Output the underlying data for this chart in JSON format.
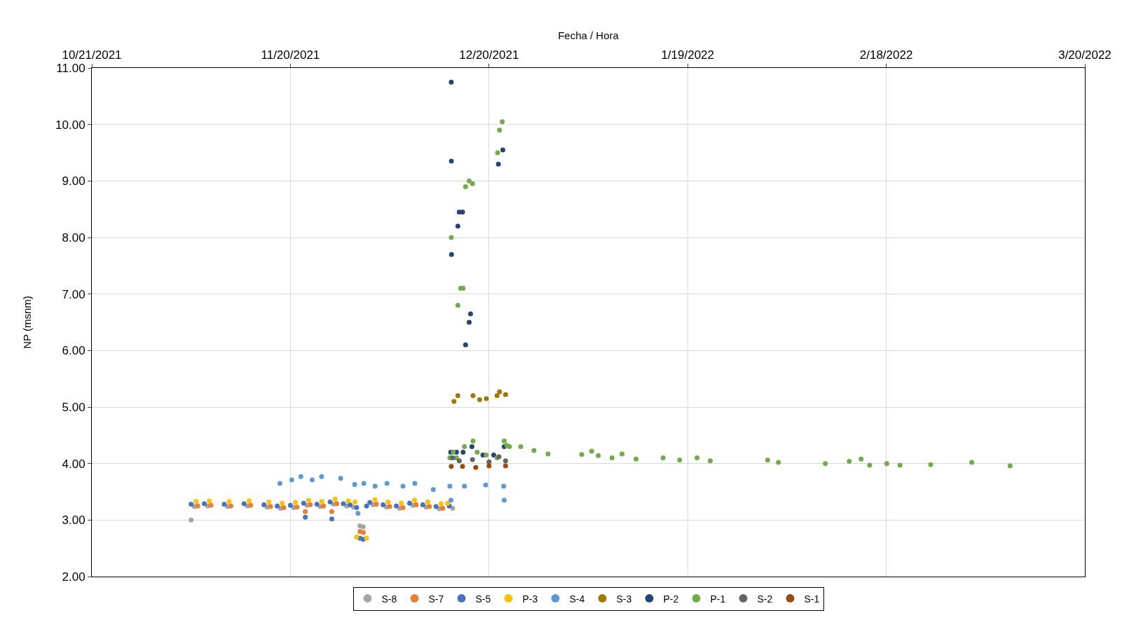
{
  "chart_data": {
    "type": "scatter",
    "xlabel": "Fecha / Hora",
    "ylabel": "NP (msnm)",
    "xlim": [
      "2021-10-21",
      "2022-03-20"
    ],
    "xticks": [
      {
        "value": "2021-10-21",
        "label": "10/21/2021"
      },
      {
        "value": "2021-11-20",
        "label": "11/20/2021"
      },
      {
        "value": "2021-12-20",
        "label": "12/20/2021"
      },
      {
        "value": "2022-01-19",
        "label": "1/19/2022"
      },
      {
        "value": "2022-02-18",
        "label": "2/18/2022"
      },
      {
        "value": "2022-03-20",
        "label": "3/20/2022"
      }
    ],
    "ylim": [
      2,
      11
    ],
    "yticks": [
      {
        "value": 2,
        "label": "2.00"
      },
      {
        "value": 3,
        "label": "3.00"
      },
      {
        "value": 4,
        "label": "4.00"
      },
      {
        "value": 5,
        "label": "5.00"
      },
      {
        "value": 6,
        "label": "6.00"
      },
      {
        "value": 7,
        "label": "7.00"
      },
      {
        "value": 8,
        "label": "8.00"
      },
      {
        "value": 9,
        "label": "9.00"
      },
      {
        "value": 10,
        "label": "10.00"
      },
      {
        "value": 11,
        "label": "11.00"
      }
    ],
    "grid": true,
    "legend": "bottom",
    "marker": "circle",
    "series": [
      {
        "name": "S-8",
        "color": "#a5a5a5",
        "x": [
          "2021-11-05",
          "2021-11-05T12:00",
          "2021-11-07T12:00",
          "2021-11-10T12:00",
          "2021-11-13T12:00",
          "2021-11-16T12:00",
          "2021-11-18T12:00",
          "2021-11-20T12:00",
          "2021-11-22T12:00",
          "2021-11-24T12:00",
          "2021-11-26T12:00",
          "2021-11-28T12:00",
          "2021-11-29T12:00",
          "2021-11-30T12:00",
          "2021-12-01",
          "2021-12-02T12:00",
          "2021-12-04T12:00",
          "2021-12-06T12:00",
          "2021-12-08T12:00",
          "2021-12-10T12:00",
          "2021-12-12T12:00",
          "2021-12-14T12:00"
        ],
        "values": [
          3.0,
          3.24,
          3.25,
          3.24,
          3.25,
          3.23,
          3.21,
          3.22,
          3.26,
          3.24,
          3.28,
          3.25,
          3.23,
          2.9,
          2.88,
          3.27,
          3.23,
          3.21,
          3.26,
          3.23,
          3.2,
          3.21
        ]
      },
      {
        "name": "S-7",
        "color": "#ed7d31",
        "x": [
          "2021-11-06",
          "2021-11-08",
          "2021-11-11",
          "2021-11-14",
          "2021-11-17",
          "2021-11-19",
          "2021-11-21",
          "2021-11-22T06:00",
          "2021-11-23",
          "2021-11-25",
          "2021-11-26T06:00",
          "2021-11-27",
          "2021-11-30T12:00",
          "2021-12-01",
          "2021-12-03",
          "2021-12-05",
          "2021-12-07",
          "2021-12-09",
          "2021-12-11",
          "2021-12-13"
        ],
        "values": [
          3.25,
          3.26,
          3.25,
          3.26,
          3.24,
          3.22,
          3.23,
          3.15,
          3.27,
          3.25,
          3.15,
          3.29,
          2.8,
          2.78,
          3.28,
          3.24,
          3.22,
          3.27,
          3.24,
          3.21
        ]
      },
      {
        "name": "S-5",
        "color": "#4472c4",
        "x": [
          "2021-11-05",
          "2021-11-07",
          "2021-11-10",
          "2021-11-13",
          "2021-11-16",
          "2021-11-18",
          "2021-11-20",
          "2021-11-22",
          "2021-11-22T06:00",
          "2021-11-24",
          "2021-11-26",
          "2021-11-26T06:00",
          "2021-11-28",
          "2021-11-29",
          "2021-11-30",
          "2021-11-30T12:00",
          "2021-12-01",
          "2021-12-01T12:00",
          "2021-12-02",
          "2021-12-04",
          "2021-12-06",
          "2021-12-08",
          "2021-12-10",
          "2021-12-12",
          "2021-12-14"
        ],
        "values": [
          3.28,
          3.29,
          3.28,
          3.29,
          3.27,
          3.25,
          3.26,
          3.3,
          3.05,
          3.28,
          3.32,
          3.02,
          3.29,
          3.27,
          3.22,
          2.68,
          2.66,
          3.25,
          3.31,
          3.27,
          3.25,
          3.3,
          3.27,
          3.24,
          3.25
        ]
      },
      {
        "name": "P-3",
        "color": "#ffc000",
        "x": [
          "2021-11-05T18:00",
          "2021-11-07T18:00",
          "2021-11-10T18:00",
          "2021-11-13T18:00",
          "2021-11-16T18:00",
          "2021-11-18T18:00",
          "2021-11-20T18:00",
          "2021-11-22T18:00",
          "2021-11-24T18:00",
          "2021-11-26T18:00",
          "2021-11-28T18:00",
          "2021-11-29T18:00",
          "2021-11-30",
          "2021-12-01T12:00",
          "2021-12-02T18:00",
          "2021-12-04T18:00",
          "2021-12-06T18:00",
          "2021-12-08T18:00",
          "2021-12-10T18:00",
          "2021-12-12T18:00",
          "2021-12-13T18:00"
        ],
        "values": [
          3.33,
          3.34,
          3.33,
          3.34,
          3.32,
          3.3,
          3.31,
          3.35,
          3.33,
          3.37,
          3.34,
          3.32,
          2.7,
          2.68,
          3.36,
          3.32,
          3.3,
          3.35,
          3.32,
          3.29,
          3.3
        ]
      },
      {
        "name": "S-4",
        "color": "#5b9bd5",
        "x": [
          "2021-11-18T10:00",
          "2021-11-20T05:00",
          "2021-11-21T14:00",
          "2021-11-23T07:00",
          "2021-11-24T17:00",
          "2021-11-27T14:00",
          "2021-11-29T17:00",
          "2021-11-30T05:00",
          "2021-12-01T02:00",
          "2021-12-02T19:00",
          "2021-12-04T14:00",
          "2021-12-07",
          "2021-12-08T19:00",
          "2021-12-11T14:00",
          "2021-12-14T02:00",
          "2021-12-14T06:00",
          "2021-12-16T07:00",
          "2021-12-19T12:00",
          "2021-12-22T05:00",
          "2021-12-22T07:00"
        ],
        "values": [
          3.65,
          3.71,
          3.77,
          3.71,
          3.77,
          3.74,
          3.63,
          3.12,
          3.65,
          3.6,
          3.65,
          3.6,
          3.65,
          3.54,
          3.6,
          3.35,
          3.6,
          3.62,
          3.6,
          3.35
        ]
      },
      {
        "name": "S-3",
        "color": "#9e7b00",
        "x": [
          "2021-12-14T17:00",
          "2021-12-15T07:00",
          "2021-12-17T14:00",
          "2021-12-18T14:00",
          "2021-12-19T14:00",
          "2021-12-21T05:00",
          "2021-12-21T14:00",
          "2021-12-22T12:00"
        ],
        "values": [
          5.1,
          5.2,
          5.2,
          5.13,
          5.15,
          5.2,
          5.27,
          5.22
        ]
      },
      {
        "name": "P-2",
        "color": "#264478",
        "x": [
          "2021-12-14T05:00",
          "2021-12-14T07:00",
          "2021-12-14T07:30",
          "2021-12-14T08:00",
          "2021-12-15T02:00",
          "2021-12-15T07:00",
          "2021-12-15T12:00",
          "2021-12-16T00:00",
          "2021-12-16T02:00",
          "2021-12-16T11:00",
          "2021-12-17T00:00",
          "2021-12-17T05:00",
          "2021-12-17T10:00",
          "2021-12-19T02:00",
          "2021-12-20T17:00",
          "2021-12-21T10:00",
          "2021-12-22T02:00",
          "2021-12-22T07:00"
        ],
        "values": [
          4.2,
          10.75,
          9.35,
          7.7,
          4.2,
          8.2,
          8.45,
          8.45,
          4.2,
          6.1,
          6.5,
          6.65,
          4.3,
          4.15,
          4.15,
          9.3,
          9.55,
          4.3
        ]
      },
      {
        "name": "P-1",
        "color": "#70ad47",
        "x": [
          "2021-12-14T02:00",
          "2021-12-14T07:00",
          "2021-12-14T14:00",
          "2021-12-15T02:00",
          "2021-12-15T07:00",
          "2021-12-15T17:00",
          "2021-12-16T02:00",
          "2021-12-16T07:00",
          "2021-12-16T11:00",
          "2021-12-17T00:00",
          "2021-12-17T12:00",
          "2021-12-17T14:00",
          "2021-12-18T05:00",
          "2021-12-19T14:00",
          "2021-12-21T05:00",
          "2021-12-21T07:00",
          "2021-12-21T14:00",
          "2021-12-22T00:00",
          "2021-12-22T07:00",
          "2021-12-22T17:00",
          "2021-12-23T02:00",
          "2021-12-24T19:00",
          "2021-12-26T19:00",
          "2021-12-28T22:00",
          "2022-01-03",
          "2022-01-04T12:00",
          "2022-01-05T12:00",
          "2022-01-07T14:00",
          "2022-01-09T02:00",
          "2022-01-11T05:00",
          "2022-01-15T07:00",
          "2022-01-17T19:00",
          "2022-01-20T10:00",
          "2022-01-22T10:00",
          "2022-01-31T02:00",
          "2022-02-01T17:00",
          "2022-02-08T19:00",
          "2022-02-12T10:00",
          "2022-02-14T05:00",
          "2022-02-15T12:00",
          "2022-02-18T02:00",
          "2022-02-20T02:00",
          "2022-02-24T17:00",
          "2022-03-02T22:00",
          "2022-03-08T17:00"
        ],
        "values": [
          4.1,
          8.0,
          4.2,
          4.1,
          6.8,
          7.1,
          7.1,
          4.3,
          8.9,
          9.0,
          8.95,
          4.4,
          4.2,
          4.15,
          4.1,
          9.5,
          9.9,
          10.05,
          4.4,
          4.32,
          4.3,
          4.3,
          4.23,
          4.17,
          4.16,
          4.22,
          4.14,
          4.1,
          4.17,
          4.08,
          4.1,
          4.06,
          4.1,
          4.05,
          4.06,
          4.02,
          4.0,
          4.04,
          4.08,
          3.97,
          4.0,
          3.97,
          3.98,
          4.02,
          3.96
        ]
      },
      {
        "name": "S-2",
        "color": "#636363",
        "x": [
          "2021-12-14T12:00",
          "2021-12-15T12:00",
          "2021-12-17T12:00",
          "2021-12-20",
          "2021-12-21T12:00",
          "2021-12-22T12:00"
        ],
        "values": [
          4.1,
          4.05,
          4.07,
          4.03,
          4.12,
          4.05
        ]
      },
      {
        "name": "S-1",
        "color": "#9e480e",
        "x": [
          "2021-12-14T07:00",
          "2021-12-16",
          "2021-12-18",
          "2021-12-20",
          "2021-12-22T12:00"
        ],
        "values": [
          3.95,
          3.95,
          3.93,
          3.96,
          3.96
        ]
      }
    ]
  }
}
